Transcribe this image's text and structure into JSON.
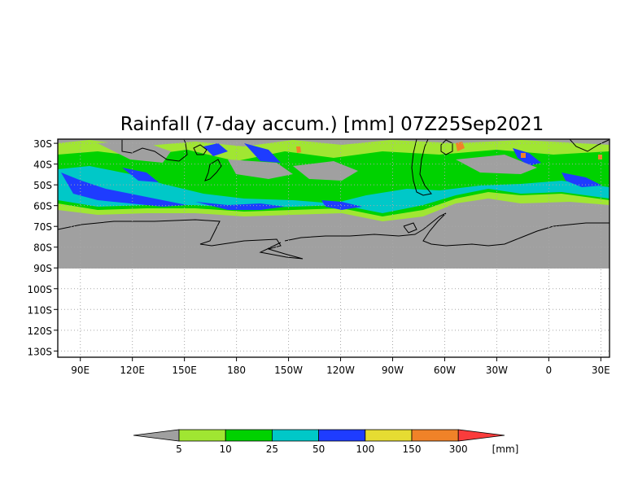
{
  "chart_data": {
    "type": "heatmap",
    "title": "Rainfall (7-day accum.) [mm] 07Z25Sep2021",
    "y_ticks": [
      "30S",
      "40S",
      "50S",
      "60S",
      "70S",
      "80S",
      "90S",
      "100S",
      "110S",
      "120S",
      "130S"
    ],
    "x_ticks": [
      "90E",
      "120E",
      "150E",
      "180",
      "150W",
      "120W",
      "90W",
      "60W",
      "30W",
      "0",
      "30E"
    ],
    "y_values": [
      -30,
      -40,
      -50,
      -60,
      -70,
      -80,
      -90,
      -100,
      -110,
      -120,
      -130
    ],
    "x_values": [
      90,
      120,
      150,
      180,
      210,
      240,
      270,
      300,
      330,
      360,
      390
    ],
    "xlim": [
      77,
      395
    ],
    "ylim": [
      -133,
      -28
    ],
    "grid": true,
    "grid_style": "dotted",
    "data_extent_lat": [
      -30,
      -90
    ],
    "colorbar": {
      "levels": [
        "5",
        "10",
        "25",
        "50",
        "100",
        "150",
        "300"
      ],
      "unit": "[mm]",
      "colors": [
        "#a0a0a0",
        "#a0e632",
        "#00d200",
        "#00c8c8",
        "#1e3cff",
        "#e6dc32",
        "#f08228",
        "#fa3c3c"
      ]
    }
  },
  "colors": {
    "land_and_dry": "#a0a0a0",
    "coastline": "#000000"
  }
}
